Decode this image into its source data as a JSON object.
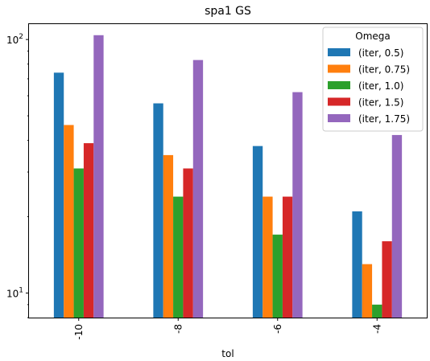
{
  "chart_data": {
    "type": "bar",
    "title": "spa1 GS",
    "xlabel": "tol",
    "ylabel": "",
    "yscale": "log",
    "ylim": [
      8,
      115
    ],
    "y_ticks": [
      {
        "value": 10,
        "base": "10",
        "exp": "1"
      },
      {
        "value": 100,
        "base": "10",
        "exp": "2"
      }
    ],
    "categories": [
      "-10",
      "-8",
      "-6",
      "-4"
    ],
    "legend": {
      "title": "Omega",
      "placement": "top-right"
    },
    "series": [
      {
        "name": "(iter, 0.5)",
        "color": "#1f77b4",
        "values": [
          74,
          56,
          38,
          21
        ]
      },
      {
        "name": "(iter, 0.75)",
        "color": "#ff7f0e",
        "values": [
          46,
          35,
          24,
          13
        ]
      },
      {
        "name": "(iter, 1.0)",
        "color": "#2ca02c",
        "values": [
          31,
          24,
          17,
          9
        ]
      },
      {
        "name": "(iter, 1.5)",
        "color": "#d62728",
        "values": [
          39,
          31,
          24,
          16
        ]
      },
      {
        "name": "(iter, 1.75)",
        "color": "#9467bd",
        "values": [
          104,
          83,
          62,
          42
        ]
      }
    ],
    "grid": false
  }
}
